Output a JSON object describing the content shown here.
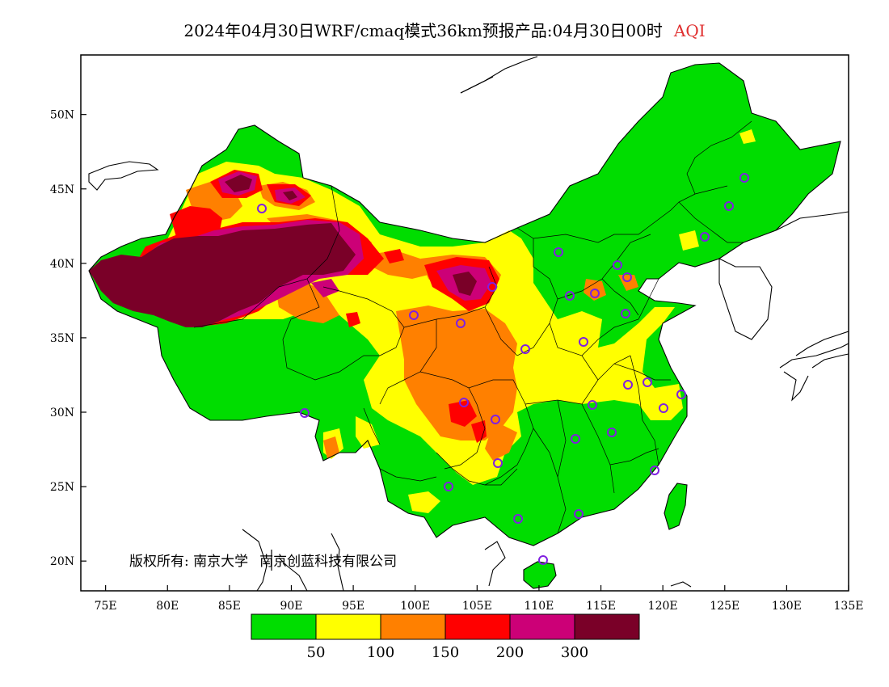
{
  "title": {
    "main": "2024年04月30日WRF/cmaq模式36km预报产品:04月30日00时",
    "variable": "AQI",
    "variable_color": "#e03030"
  },
  "map": {
    "lon_range": [
      73,
      135
    ],
    "lat_range": [
      18,
      54
    ],
    "lat_ticks": [
      "20N",
      "25N",
      "30N",
      "35N",
      "40N",
      "45N",
      "50N"
    ],
    "lon_ticks": [
      "75E",
      "80E",
      "85E",
      "90E",
      "95E",
      "100E",
      "105E",
      "110E",
      "115E",
      "120E",
      "125E",
      "130E",
      "135E"
    ]
  },
  "legend": {
    "colors": [
      "#00dd00",
      "#ffff00",
      "#ff8000",
      "#ff0000",
      "#cc0077",
      "#7a0028"
    ],
    "labels": [
      "50",
      "100",
      "150",
      "200",
      "300"
    ]
  },
  "copyright": {
    "label": "版权所有:",
    "owner1": "南京大学",
    "owner2": "南京创蓝科技有限公司"
  },
  "station_color": "#8020e0"
}
